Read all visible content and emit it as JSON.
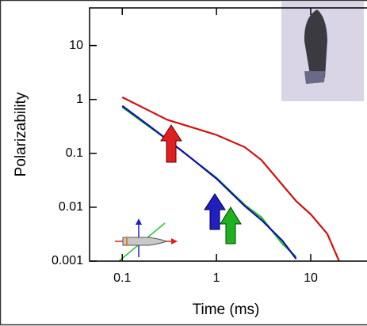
{
  "chart_data": {
    "type": "line",
    "xlabel": "Time (ms)",
    "ylabel": "Polarizability",
    "xscale": "log",
    "yscale": "log",
    "x": [
      0.1,
      0.2,
      0.3,
      0.5,
      1,
      2,
      3,
      5,
      7,
      10,
      15,
      20
    ],
    "series": [
      {
        "color": "#d01010",
        "values": [
          1.1,
          0.6,
          0.42,
          0.32,
          0.22,
          0.13,
          0.075,
          0.026,
          0.013,
          0.0074,
          0.0032,
          0.001
        ]
      },
      {
        "color": "#20c020",
        "values": [
          0.72,
          0.3,
          0.18,
          0.09,
          0.035,
          0.011,
          0.0065,
          0.0021,
          0.0012,
          null,
          null,
          null
        ]
      },
      {
        "color": "#1010b0",
        "values": [
          0.76,
          0.31,
          0.18,
          0.09,
          0.034,
          0.0105,
          0.0058,
          0.0024,
          0.0011,
          null,
          null,
          null
        ]
      }
    ],
    "xlim": [
      0.045,
      48
    ],
    "ylim": [
      0.001,
      50
    ],
    "xticks": [
      0.1,
      1,
      10
    ],
    "yticks": [
      0.001,
      0.01,
      0.1,
      1,
      10
    ]
  }
}
